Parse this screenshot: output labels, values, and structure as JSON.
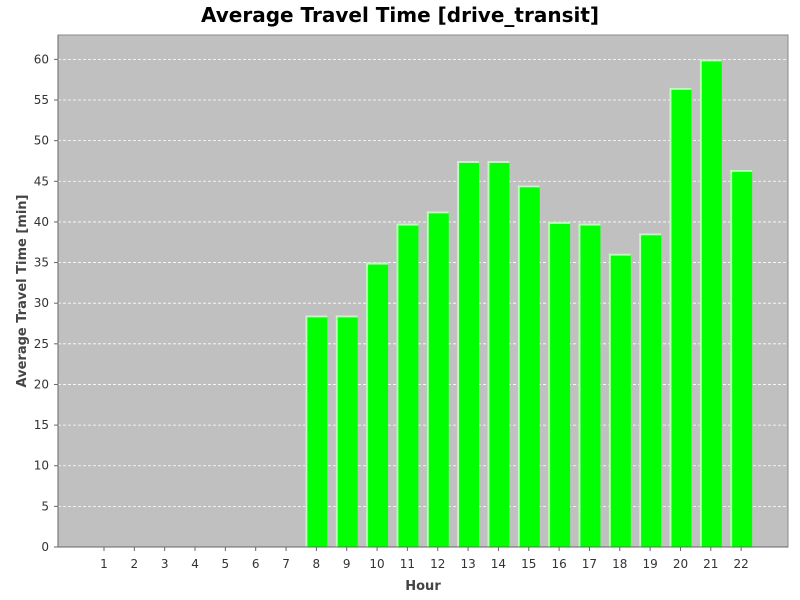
{
  "chart_data": {
    "type": "bar",
    "title": "Average Travel Time [drive_transit]",
    "xlabel": "Hour",
    "ylabel": "Average Travel Time [min]",
    "categories": [
      "1",
      "2",
      "3",
      "4",
      "5",
      "6",
      "7",
      "8",
      "9",
      "10",
      "11",
      "12",
      "13",
      "14",
      "15",
      "16",
      "17",
      "18",
      "19",
      "20",
      "21",
      "22"
    ],
    "values": [
      0,
      0,
      0,
      0,
      0,
      0,
      0,
      28.5,
      28.5,
      35.0,
      39.8,
      41.3,
      47.5,
      47.5,
      44.5,
      40.0,
      39.8,
      36.1,
      38.6,
      56.5,
      60.0,
      46.4
    ],
    "ylim": [
      0,
      63
    ],
    "yticks": [
      0,
      5,
      10,
      15,
      20,
      25,
      30,
      35,
      40,
      45,
      50,
      55,
      60
    ],
    "grid": true,
    "colors": {
      "bar": "#00ff00",
      "bar_highlight": "#b8ffb8",
      "plot_bg": "#c0c0c0",
      "grid": "#ffffff"
    }
  }
}
